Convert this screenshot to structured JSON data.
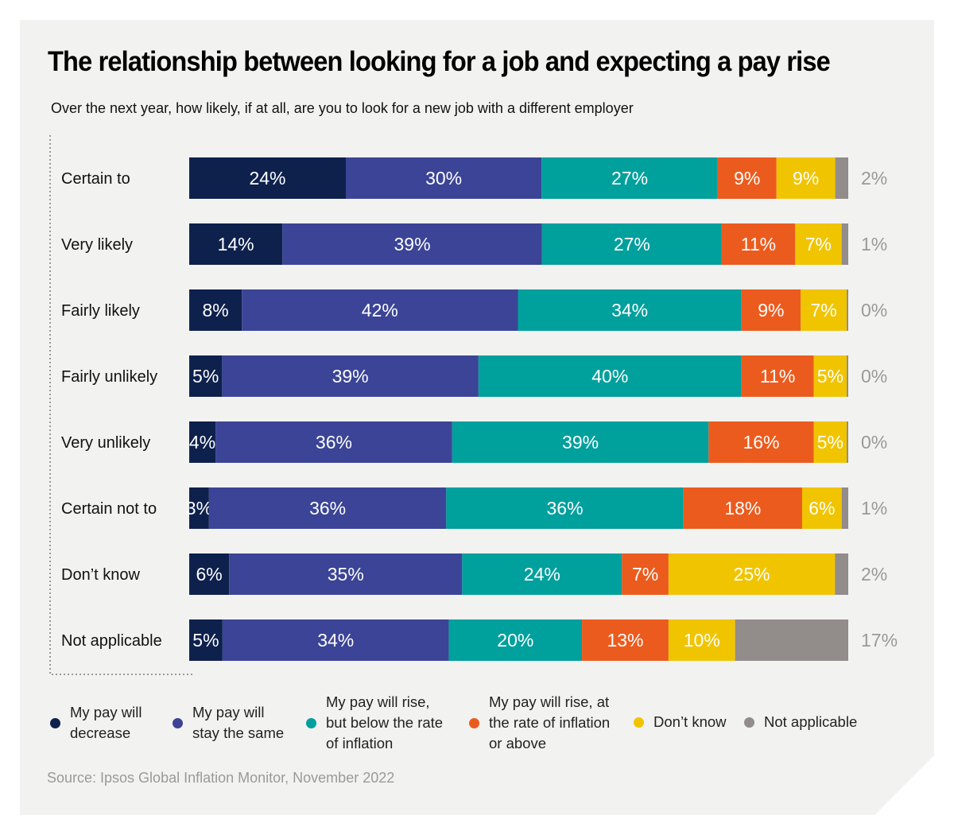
{
  "title": "The relationship between looking for a job and expecting a pay rise",
  "subtitle": "Over the next year, how likely, if at all, are you to look for a new job with a different employer",
  "source": "Source: Ipsos Global Inflation Monitor, November 2022",
  "chart_data": {
    "type": "bar",
    "orientation": "horizontal",
    "stacked": true,
    "title": "The relationship between looking for a job and expecting a pay rise",
    "categories": [
      "Certain to",
      "Very likely",
      "Fairly likely",
      "Fairly unlikely",
      "Very unlikely",
      "Certain not to",
      "Don’t know",
      "Not applicable"
    ],
    "series": [
      {
        "name": "My pay will decrease",
        "color": "#0e214d",
        "values": [
          24,
          14,
          8,
          5,
          4,
          3,
          6,
          5
        ]
      },
      {
        "name": "My pay will stay the same",
        "color": "#3b4496",
        "values": [
          30,
          39,
          42,
          39,
          36,
          36,
          35,
          34
        ]
      },
      {
        "name": "My pay will rise, but below the rate of inflation",
        "color": "#00a09d",
        "values": [
          27,
          27,
          34,
          40,
          39,
          36,
          24,
          20
        ]
      },
      {
        "name": "My pay will rise, at the rate of inflation or above",
        "color": "#ec5b1e",
        "values": [
          9,
          11,
          9,
          11,
          16,
          18,
          7,
          13
        ]
      },
      {
        "name": "Don’t know",
        "color": "#f1c400",
        "values": [
          9,
          7,
          7,
          5,
          5,
          6,
          25,
          10
        ]
      },
      {
        "name": "Not applicable",
        "color": "#928c8b",
        "values": [
          2,
          1,
          0,
          0,
          0,
          1,
          2,
          17
        ]
      }
    ],
    "unit": "%",
    "grid": false,
    "legend_position": "bottom"
  },
  "legend": [
    {
      "lines": [
        "My pay will",
        "decrease"
      ]
    },
    {
      "lines": [
        "My pay will",
        "stay the same"
      ]
    },
    {
      "lines": [
        "My pay will rise,",
        "but below the rate",
        "of inflation"
      ]
    },
    {
      "lines": [
        "My pay will rise, at",
        "the rate of inflation",
        "or above"
      ]
    },
    {
      "lines": [
        "Don’t know"
      ]
    },
    {
      "lines": [
        "Not applicable"
      ]
    }
  ]
}
